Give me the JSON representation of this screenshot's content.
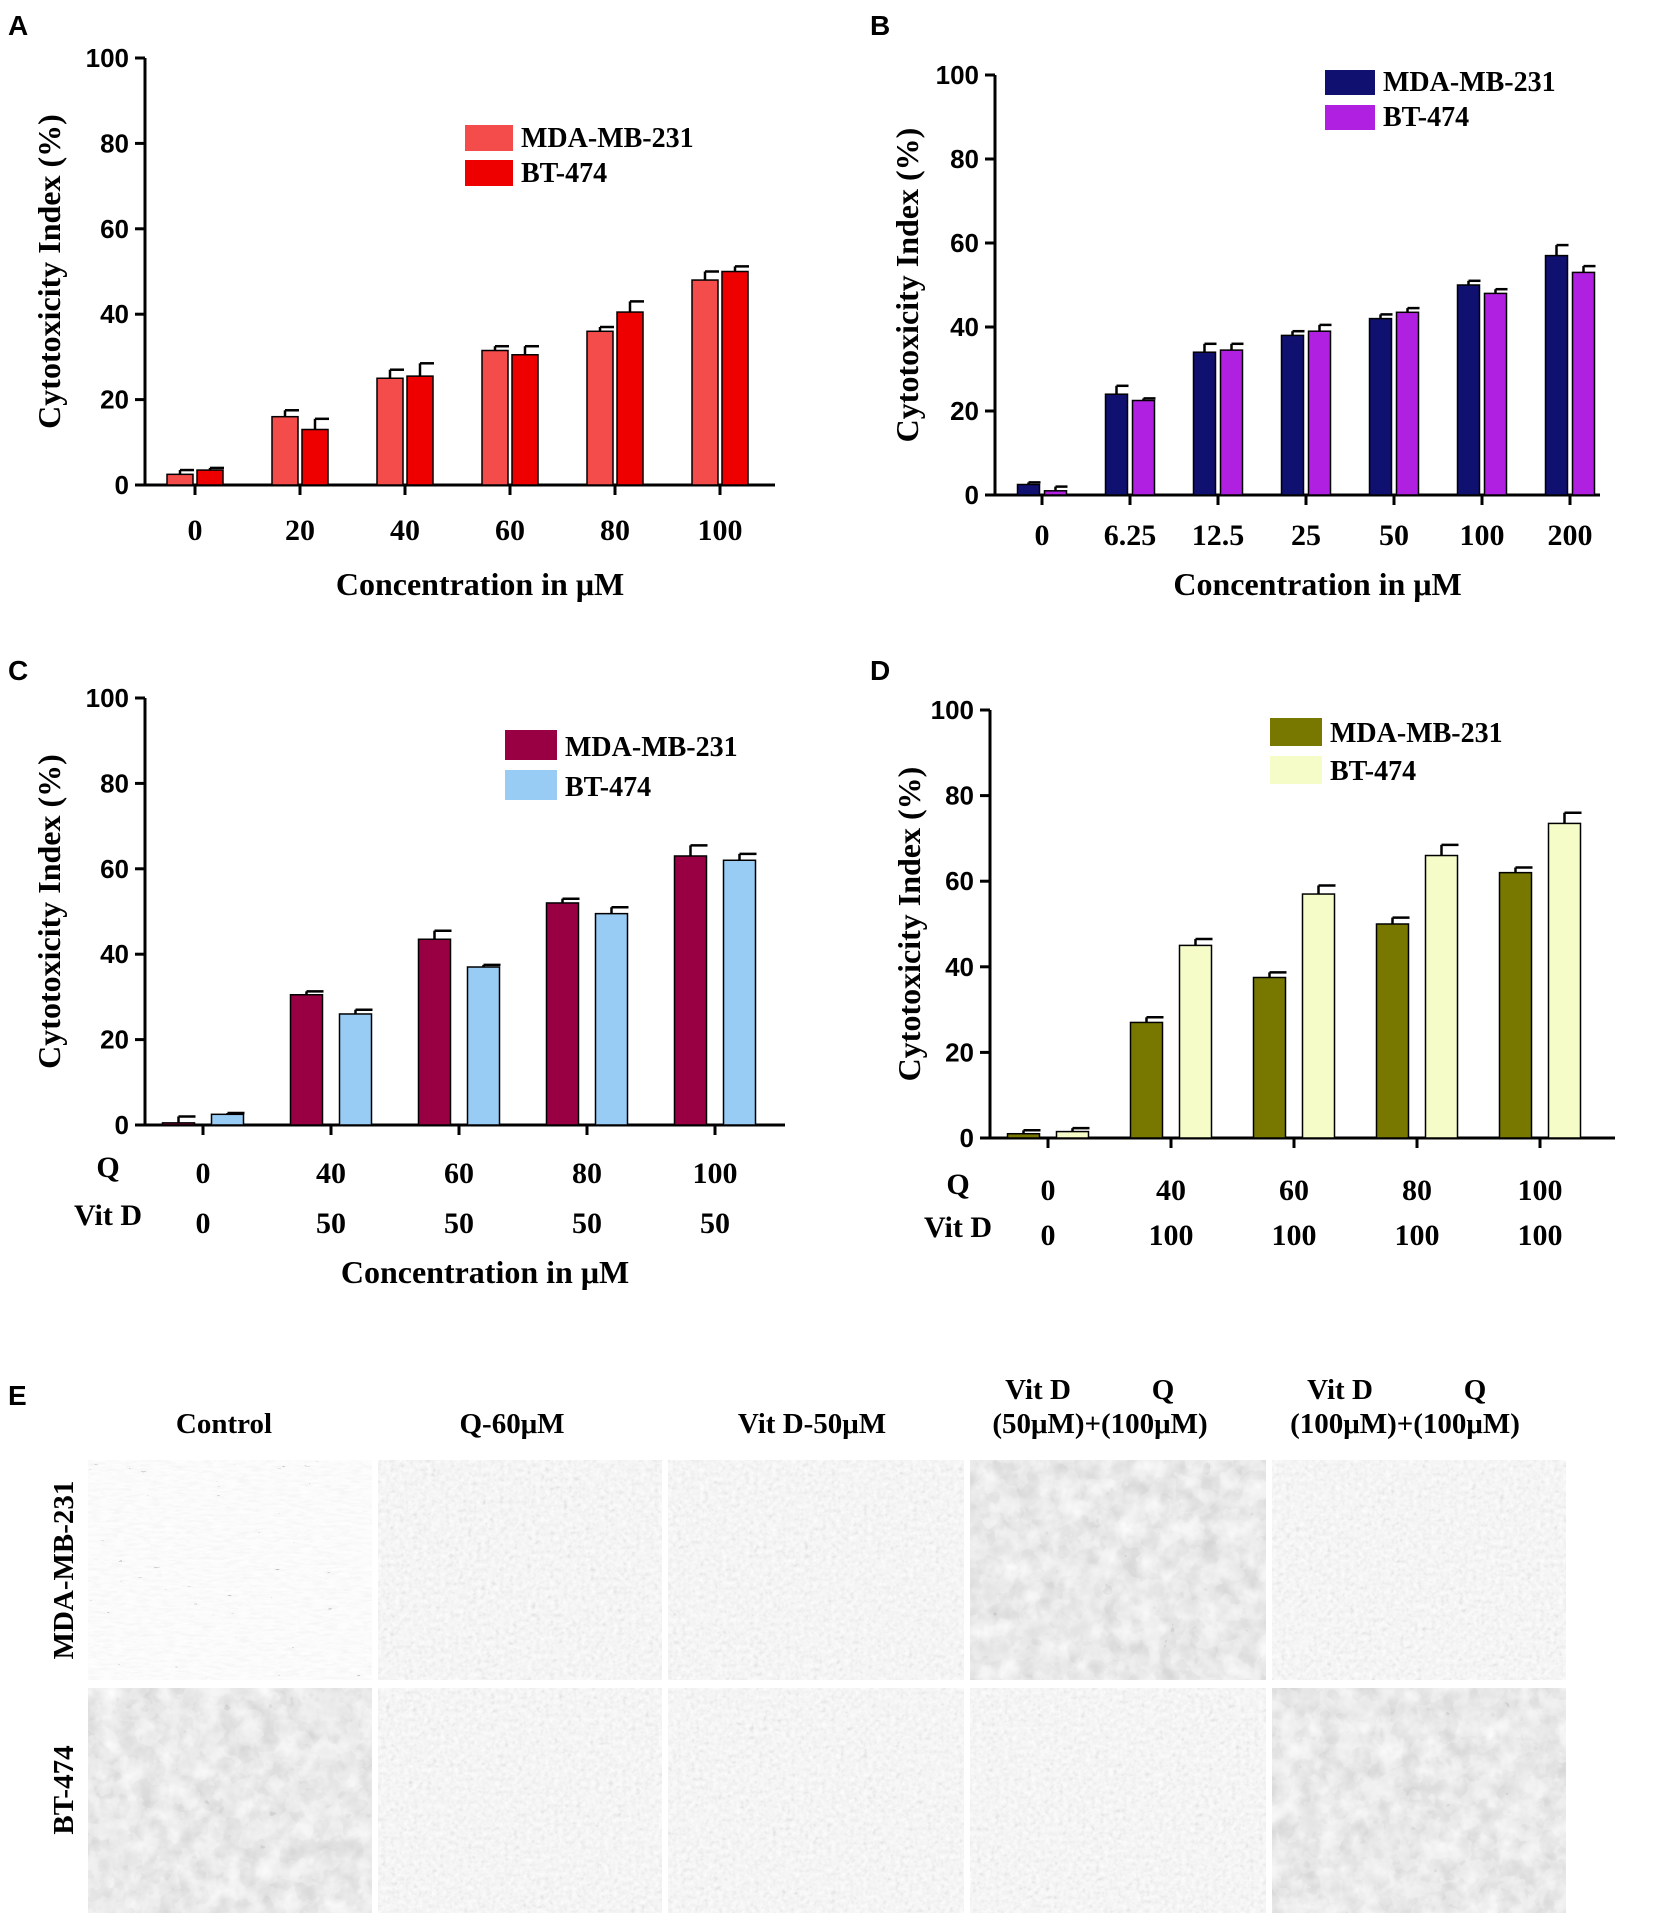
{
  "chart_data": [
    {
      "id": "A",
      "panel_label": "A",
      "type": "bar",
      "title": "",
      "xlabel": "Concentration in μM",
      "ylabel": "Cytotoxicity Index (%)",
      "ylim": [
        0,
        100
      ],
      "yticks": [
        0,
        20,
        40,
        60,
        80,
        100
      ],
      "categories": [
        "0",
        "20",
        "40",
        "60",
        "80",
        "100"
      ],
      "series": [
        {
          "name": "MDA-MB-231",
          "color": "#f44b4b",
          "values": [
            2.5,
            16,
            25,
            31.5,
            36,
            48
          ],
          "errors": [
            1,
            1.5,
            2,
            1,
            1,
            2
          ]
        },
        {
          "name": "BT-474",
          "color": "#ee0000",
          "values": [
            3.5,
            13,
            25.5,
            30.5,
            40.5,
            50
          ],
          "errors": [
            0.5,
            2.5,
            3,
            2,
            2.5,
            1.2
          ]
        }
      ],
      "legend_position": "top-right"
    },
    {
      "id": "B",
      "panel_label": "B",
      "type": "bar",
      "title": "",
      "xlabel": "Concentration in μM",
      "ylabel": "Cytotoxicity Index (%)",
      "ylim": [
        0,
        100
      ],
      "yticks": [
        0,
        20,
        40,
        60,
        80,
        100
      ],
      "categories": [
        "0",
        "6.25",
        "12.5",
        "25",
        "50",
        "100",
        "200"
      ],
      "series": [
        {
          "name": "MDA-MB-231",
          "color": "#101070",
          "values": [
            2.5,
            24,
            34,
            38,
            42,
            50,
            57
          ],
          "errors": [
            0.5,
            2,
            2,
            1,
            1,
            1,
            2.5
          ]
        },
        {
          "name": "BT-474",
          "color": "#b020e0",
          "values": [
            1,
            22.5,
            34.5,
            39,
            43.5,
            48,
            53
          ],
          "errors": [
            1,
            0.5,
            1.5,
            1.5,
            1,
            1,
            1.5
          ]
        }
      ],
      "legend_position": "top-right"
    },
    {
      "id": "C",
      "panel_label": "C",
      "type": "bar",
      "title": "",
      "xlabel": "Concentration in μM",
      "ylabel": "Cytotoxicity Index (%)",
      "ylim": [
        0,
        100
      ],
      "yticks": [
        0,
        20,
        40,
        60,
        80,
        100
      ],
      "row_labels": [
        "Q",
        "Vit D"
      ],
      "categories_q": [
        "0",
        "40",
        "60",
        "80",
        "100"
      ],
      "categories_vitd": [
        "0",
        "50",
        "50",
        "50",
        "50"
      ],
      "series": [
        {
          "name": "MDA-MB-231",
          "color": "#990044",
          "values": [
            0.5,
            30.5,
            43.5,
            52,
            63
          ],
          "errors": [
            1.5,
            0.8,
            2,
            1,
            2.5
          ]
        },
        {
          "name": "BT-474",
          "color": "#99ccf5",
          "values": [
            2.5,
            26,
            37,
            49.5,
            62
          ],
          "errors": [
            0.3,
            1,
            0.5,
            1.5,
            1.5
          ]
        }
      ],
      "legend_position": "top-right"
    },
    {
      "id": "D",
      "panel_label": "D",
      "type": "bar",
      "title": "",
      "xlabel": "",
      "ylabel": "Cytotoxicity Index (%)",
      "ylim": [
        0,
        100
      ],
      "yticks": [
        0,
        20,
        40,
        60,
        80,
        100
      ],
      "row_labels": [
        "Q",
        "Vit D"
      ],
      "categories_q": [
        "0",
        "40",
        "60",
        "80",
        "100"
      ],
      "categories_vitd": [
        "0",
        "100",
        "100",
        "100",
        "100"
      ],
      "series": [
        {
          "name": "MDA-MB-231",
          "color": "#787800",
          "values": [
            1,
            27,
            37.5,
            50,
            62
          ],
          "errors": [
            0.8,
            1.2,
            1.2,
            1.5,
            1.2
          ]
        },
        {
          "name": "BT-474",
          "color": "#f5fcc8",
          "values": [
            1.5,
            45,
            57,
            66,
            73.5
          ],
          "errors": [
            0.8,
            1.5,
            2,
            2.5,
            2.5
          ]
        }
      ],
      "legend_position": "top-right"
    }
  ],
  "micrographs": {
    "panel_label": "E",
    "columns": [
      "Control",
      "Q-60μM",
      "Vit D-50μM",
      "Vit D (50μM)+(100μM) Q",
      "Vit D (100μM)+(100μM) Q"
    ],
    "column_lines": [
      [
        "Control"
      ],
      [
        "Q-60μM"
      ],
      [
        "Vit D-50μM"
      ],
      [
        "Vit D",
        "Q",
        "(50μM)+(100μM)"
      ],
      [
        "Vit D",
        "Q",
        "(100μM)+(100μM)"
      ]
    ],
    "rows": [
      "MDA-MB-231",
      "BT-474"
    ]
  }
}
